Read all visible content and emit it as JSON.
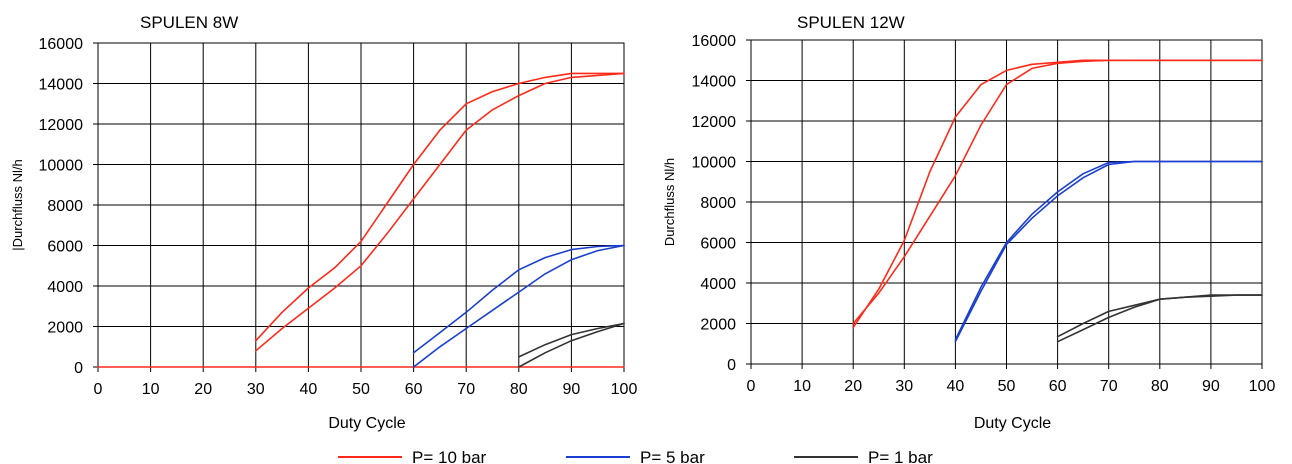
{
  "chart_data": [
    {
      "type": "line",
      "title": "SPULEN 8W",
      "xlabel": "Duty Cycle",
      "ylabel": "|Durchfluss Nl/h",
      "xlim": [
        0,
        100
      ],
      "ylim": [
        0,
        16000
      ],
      "xticks": [
        "0",
        "10",
        "20",
        "30",
        "40",
        "50",
        "60",
        "70",
        "80",
        "90",
        "100"
      ],
      "yticks": [
        "0",
        "2000",
        "4000",
        "6000",
        "8000",
        "10000",
        "12000",
        "14000",
        "16000"
      ],
      "grid": true,
      "series": [
        {
          "name": "P= 10 bar",
          "color": "#ff2a1a",
          "x": [
            0,
            30,
            35,
            40,
            45,
            50,
            55,
            60,
            65,
            70,
            75,
            80,
            85,
            90,
            95,
            100
          ],
          "y": [
            0,
            0,
            0,
            0,
            0,
            0,
            0,
            0,
            0,
            0,
            0,
            0,
            0,
            0,
            0,
            0
          ]
        },
        {
          "name": "P= 10 bar",
          "color": "#ff2a1a",
          "x": [
            30,
            35,
            40,
            45,
            50,
            55,
            60,
            65,
            70,
            75,
            80,
            85,
            90,
            95,
            100
          ],
          "y": [
            1300,
            2700,
            3900,
            4900,
            6200,
            8100,
            10000,
            11700,
            13000,
            13600,
            14000,
            14300,
            14500,
            14500,
            14500
          ]
        },
        {
          "name": "P= 10 bar",
          "color": "#ff2a1a",
          "x": [
            30,
            35,
            40,
            45,
            50,
            55,
            60,
            65,
            70,
            75,
            80,
            85,
            90,
            95,
            100
          ],
          "y": [
            800,
            1900,
            2900,
            3900,
            5000,
            6600,
            8300,
            10000,
            11700,
            12700,
            13400,
            14000,
            14300,
            14400,
            14500
          ]
        },
        {
          "name": "P= 5 bar",
          "color": "#1a3fd0",
          "x": [
            60,
            65,
            70,
            75,
            80,
            85,
            90,
            95,
            100
          ],
          "y": [
            700,
            1700,
            2700,
            3800,
            4800,
            5400,
            5800,
            5950,
            6000
          ]
        },
        {
          "name": "P= 5 bar",
          "color": "#1a3fd0",
          "x": [
            60,
            65,
            70,
            75,
            80,
            85,
            90,
            95,
            100
          ],
          "y": [
            0,
            1000,
            1900,
            2800,
            3700,
            4600,
            5300,
            5750,
            6000
          ]
        },
        {
          "name": "P= 1 bar",
          "color": "#333333",
          "x": [
            80,
            85,
            90,
            95,
            100
          ],
          "y": [
            500,
            1100,
            1600,
            1900,
            2150
          ]
        },
        {
          "name": "P= 1 bar",
          "color": "#333333",
          "x": [
            80,
            85,
            90,
            95,
            100
          ],
          "y": [
            0,
            700,
            1300,
            1750,
            2150
          ]
        }
      ]
    },
    {
      "type": "line",
      "title": "SPULEN 12W",
      "xlabel": "Duty Cycle",
      "ylabel": "Durchfluss Nl/h",
      "xlim": [
        0,
        100
      ],
      "ylim": [
        0,
        16000
      ],
      "xticks": [
        "0",
        "10",
        "20",
        "30",
        "40",
        "50",
        "60",
        "70",
        "80",
        "90",
        "100"
      ],
      "yticks": [
        "0",
        "2000",
        "4000",
        "6000",
        "8000",
        "10000",
        "12000",
        "14000",
        "16000"
      ],
      "grid": true,
      "series": [
        {
          "name": "P= 10 bar",
          "color": "#ff2a1a",
          "x": [
            20,
            25,
            30,
            35,
            40,
            45,
            50,
            55,
            60,
            65,
            70,
            75,
            80,
            85,
            90,
            95,
            100
          ],
          "y": [
            1800,
            3700,
            6100,
            9500,
            12200,
            13800,
            14500,
            14800,
            14900,
            15000,
            15000,
            15000,
            15000,
            15000,
            15000,
            15000,
            15000
          ]
        },
        {
          "name": "P= 10 bar",
          "color": "#ff2a1a",
          "x": [
            20,
            25,
            30,
            35,
            40,
            45,
            50,
            55,
            60,
            65,
            70,
            75,
            80,
            85,
            90,
            95,
            100
          ],
          "y": [
            2000,
            3500,
            5300,
            7300,
            9300,
            11800,
            13800,
            14600,
            14850,
            14950,
            15000,
            15000,
            15000,
            15000,
            15000,
            15000,
            15000
          ]
        },
        {
          "name": "P= 5 bar",
          "color": "#1a3fd0",
          "x": [
            40,
            45,
            50,
            55,
            60,
            65,
            70,
            75,
            80,
            90,
            100
          ],
          "y": [
            1200,
            3800,
            6000,
            7400,
            8500,
            9400,
            9950,
            10000,
            10000,
            10000,
            10000
          ]
        },
        {
          "name": "P= 5 bar",
          "color": "#1a3fd0",
          "x": [
            40,
            45,
            50,
            55,
            60,
            65,
            70,
            75,
            80,
            90,
            100
          ],
          "y": [
            1100,
            3600,
            5900,
            7200,
            8300,
            9200,
            9850,
            10000,
            10000,
            10000,
            10000
          ]
        },
        {
          "name": "P= 1 bar",
          "color": "#333333",
          "x": [
            60,
            65,
            70,
            75,
            80,
            85,
            90,
            95,
            100
          ],
          "y": [
            1350,
            2000,
            2600,
            2900,
            3200,
            3300,
            3400,
            3400,
            3400
          ]
        },
        {
          "name": "P= 1 bar",
          "color": "#333333",
          "x": [
            60,
            65,
            70,
            75,
            80,
            85,
            90,
            95,
            100
          ],
          "y": [
            1100,
            1700,
            2300,
            2800,
            3200,
            3300,
            3350,
            3400,
            3400
          ]
        }
      ]
    }
  ],
  "legend": {
    "placement": "bottom-center",
    "items": [
      {
        "label": "P= 10 bar",
        "color": "#ff2a1a"
      },
      {
        "label": "P= 5 bar",
        "color": "#1a3fd0"
      },
      {
        "label": "P= 1 bar",
        "color": "#333333"
      }
    ]
  }
}
